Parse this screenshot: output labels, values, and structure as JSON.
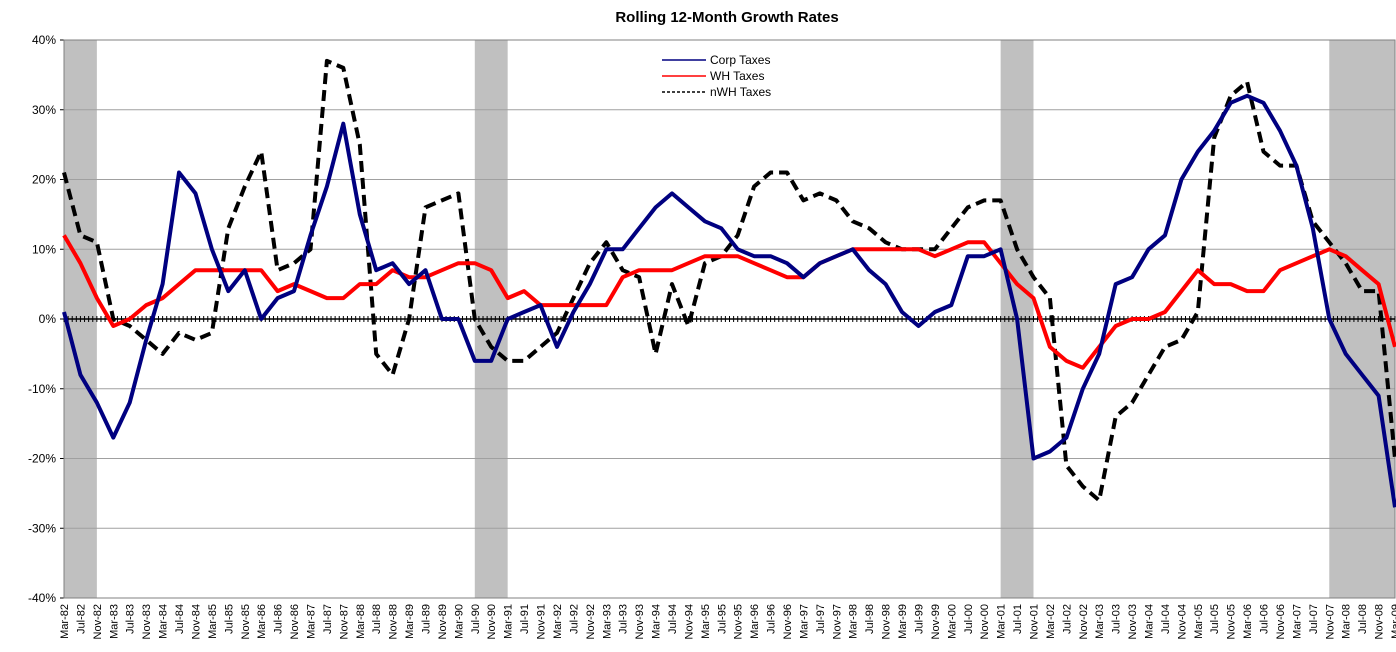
{
  "chart_data": {
    "type": "line",
    "title": "Rolling 12-Month Growth Rates",
    "categories": [
      "Mar-82",
      "Jul-82",
      "Nov-82",
      "Mar-83",
      "Jul-83",
      "Nov-83",
      "Mar-84",
      "Jul-84",
      "Nov-84",
      "Mar-85",
      "Jul-85",
      "Nov-85",
      "Mar-86",
      "Jul-86",
      "Nov-86",
      "Mar-87",
      "Jul-87",
      "Nov-87",
      "Mar-88",
      "Jul-88",
      "Nov-88",
      "Mar-89",
      "Jul-89",
      "Nov-89",
      "Mar-90",
      "Jul-90",
      "Nov-90",
      "Mar-91",
      "Jul-91",
      "Nov-91",
      "Mar-92",
      "Jul-92",
      "Nov-92",
      "Mar-93",
      "Jul-93",
      "Nov-93",
      "Mar-94",
      "Jul-94",
      "Nov-94",
      "Mar-95",
      "Jul-95",
      "Nov-95",
      "Mar-96",
      "Jul-96",
      "Nov-96",
      "Mar-97",
      "Jul-97",
      "Nov-97",
      "Mar-98",
      "Jul-98",
      "Nov-98",
      "Mar-99",
      "Jul-99",
      "Nov-99",
      "Mar-00",
      "Jul-00",
      "Nov-00",
      "Mar-01",
      "Jul-01",
      "Nov-01",
      "Mar-02",
      "Jul-02",
      "Nov-02",
      "Mar-03",
      "Jul-03",
      "Nov-03",
      "Mar-04",
      "Jul-04",
      "Nov-04",
      "Mar-05",
      "Jul-05",
      "Nov-05",
      "Mar-06",
      "Jul-06",
      "Nov-06",
      "Mar-07",
      "Jul-07",
      "Nov-07",
      "Mar-08",
      "Jul-08",
      "Nov-08",
      "Mar-09"
    ],
    "series": [
      {
        "name": "Corp Taxes",
        "color": "#000080",
        "dash": false,
        "values": [
          1,
          -8,
          -12,
          -17,
          -12,
          -3,
          5,
          21,
          18,
          10,
          4,
          7,
          0,
          3,
          4,
          12,
          19,
          28,
          15,
          7,
          8,
          5,
          7,
          0,
          0,
          -6,
          -6,
          0,
          1,
          2,
          -4,
          1,
          5,
          10,
          10,
          13,
          16,
          18,
          16,
          14,
          13,
          10,
          9,
          9,
          8,
          6,
          8,
          9,
          10,
          7,
          5,
          1,
          -1,
          1,
          2,
          9,
          9,
          10,
          0,
          -20,
          -19,
          -17,
          -10,
          -5,
          5,
          6,
          10,
          12,
          20,
          24,
          27,
          31,
          32,
          31,
          27,
          22,
          13,
          0,
          -5,
          -8,
          -11,
          -27
        ]
      },
      {
        "name": "WH Taxes",
        "color": "#ff0000",
        "dash": false,
        "values": [
          12,
          8,
          3,
          -1,
          0,
          2,
          3,
          5,
          7,
          7,
          7,
          7,
          7,
          4,
          5,
          4,
          3,
          3,
          5,
          5,
          7,
          6,
          6,
          7,
          8,
          8,
          7,
          3,
          4,
          2,
          2,
          2,
          2,
          2,
          6,
          7,
          7,
          7,
          8,
          9,
          9,
          9,
          8,
          7,
          6,
          6,
          8,
          9,
          10,
          10,
          10,
          10,
          10,
          9,
          10,
          11,
          11,
          8,
          5,
          3,
          -4,
          -6,
          -7,
          -4,
          -1,
          0,
          0,
          1,
          4,
          7,
          5,
          5,
          4,
          4,
          7,
          8,
          9,
          10,
          9,
          7,
          5,
          -4
        ]
      },
      {
        "name": "nWH Taxes",
        "color": "#000000",
        "dash": true,
        "values": [
          21,
          12,
          11,
          0,
          -1,
          -3,
          -5,
          -2,
          -3,
          -2,
          13,
          19,
          24,
          7,
          8,
          10,
          37,
          36,
          25,
          -5,
          -8,
          0,
          16,
          17,
          18,
          0,
          -4,
          -6,
          -6,
          -4,
          -2,
          3,
          8,
          11,
          7,
          6,
          -5,
          5,
          -1,
          8,
          9,
          12,
          19,
          21,
          21,
          17,
          18,
          17,
          14,
          13,
          11,
          10,
          10,
          10,
          13,
          16,
          17,
          17,
          10,
          6,
          3,
          -21,
          -24,
          -26,
          -14,
          -12,
          -8,
          -4,
          -3,
          1,
          26,
          32,
          34,
          24,
          22,
          22,
          14,
          11,
          8,
          4,
          4,
          -20
        ]
      }
    ],
    "shaded_periods": [
      {
        "from": "Mar-82",
        "to": "Nov-82"
      },
      {
        "from": "Jul-90",
        "to": "Mar-91"
      },
      {
        "from": "Mar-01",
        "to": "Nov-01"
      },
      {
        "from": "Nov-07",
        "to": "Mar-09"
      }
    ],
    "shade_color": "#c0c0c0",
    "ylim": [
      -40,
      40
    ],
    "yticks": [
      {
        "value": -40,
        "label": "-40%"
      },
      {
        "value": -30,
        "label": "-30%"
      },
      {
        "value": -20,
        "label": "-20%"
      },
      {
        "value": -10,
        "label": "-10%"
      },
      {
        "value": 0,
        "label": "0%"
      },
      {
        "value": 10,
        "label": "10%"
      },
      {
        "value": 20,
        "label": "20%"
      },
      {
        "value": 30,
        "label": "30%"
      },
      {
        "value": 40,
        "label": "40%"
      }
    ],
    "grid": true,
    "legend": "top"
  }
}
